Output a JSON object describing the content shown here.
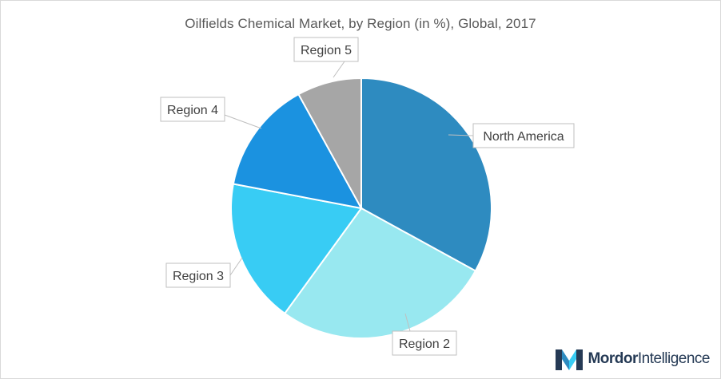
{
  "chart_data": {
    "type": "pie",
    "title": "Oilfields Chemical Market, by Region (in %), Global, 2017",
    "categories": [
      "North America",
      "Region 2",
      "Region 3",
      "Region 4",
      "Region 5"
    ],
    "values": [
      33,
      27,
      18,
      14,
      8
    ],
    "colors": [
      "#2e8bc0",
      "#98e8f0",
      "#38ccf4",
      "#1b92e0",
      "#a6a6a6"
    ],
    "legend": "none",
    "data_labels": "category name callouts"
  },
  "branding": {
    "logo_icon": "mordor-intelligence-logo-icon",
    "logo_word_1": "Mordor",
    "logo_word_2": "Intelligence"
  }
}
